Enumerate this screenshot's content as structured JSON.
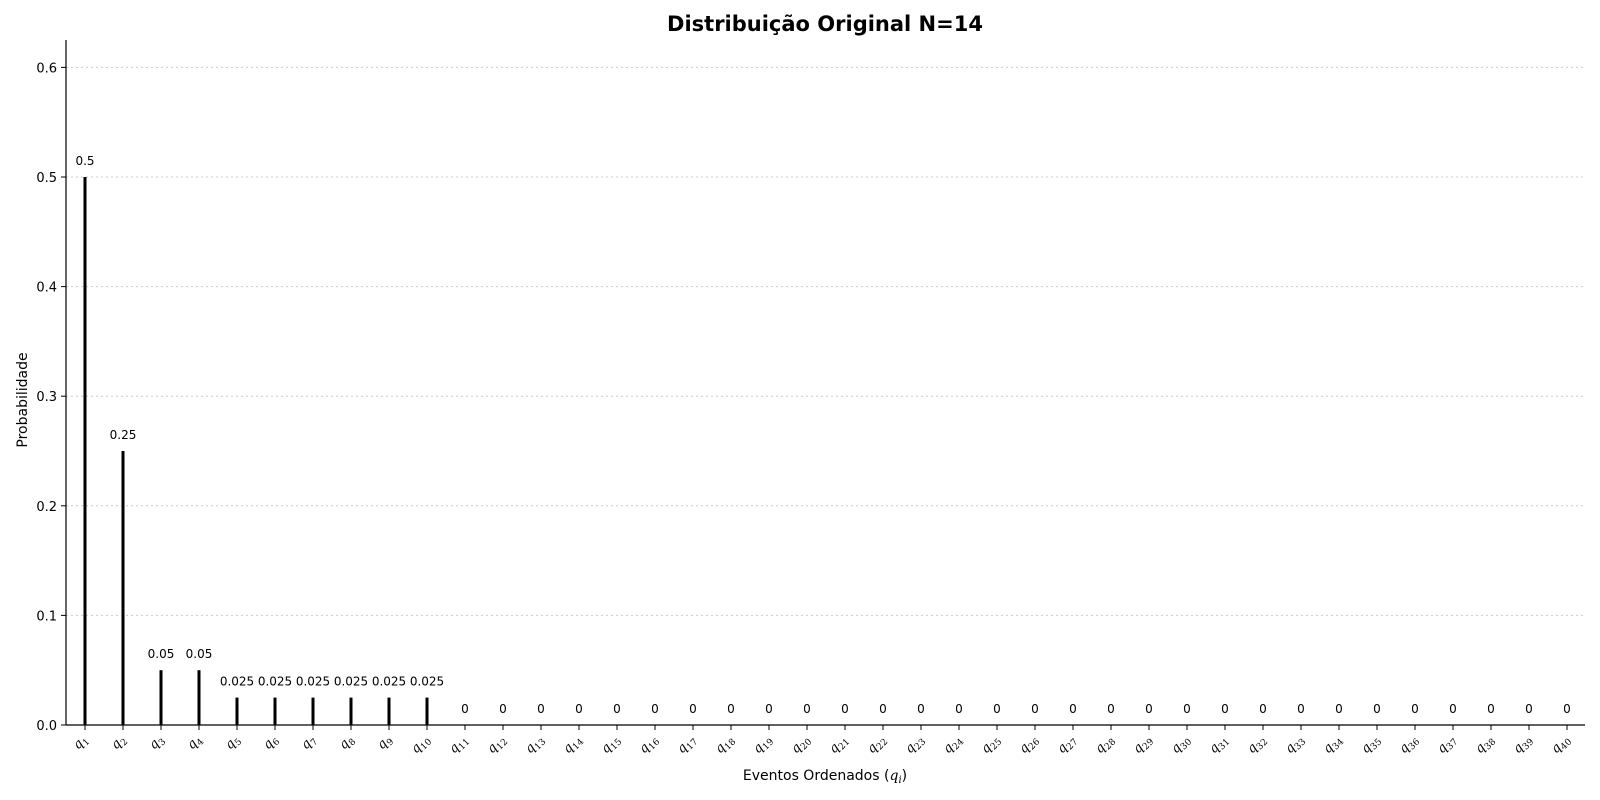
{
  "chart_data": {
    "type": "bar",
    "title": "Distribuição Original N=14",
    "xlabel": "Eventos Ordenados",
    "xlabel_math": "(q_i)",
    "ylabel": "Probabilidade",
    "ylim": [
      0,
      0.625
    ],
    "yticks": [
      "0.0",
      "0.1",
      "0.2",
      "0.3",
      "0.4",
      "0.5",
      "0.6"
    ],
    "ytick_values": [
      0,
      0.1,
      0.2,
      0.3,
      0.4,
      0.5,
      0.6
    ],
    "grid": "y-dotted",
    "bar_color": "#000000",
    "grid_color": "#cccccc",
    "categories": [
      "q_1",
      "q_2",
      "q_3",
      "q_4",
      "q_5",
      "q_6",
      "q_7",
      "q_8",
      "q_9",
      "q_10",
      "q_11",
      "q_12",
      "q_13",
      "q_14",
      "q_15",
      "q_16",
      "q_17",
      "q_18",
      "q_19",
      "q_20",
      "q_21",
      "q_22",
      "q_23",
      "q_24",
      "q_25",
      "q_26",
      "q_27",
      "q_28",
      "q_29",
      "q_30",
      "q_31",
      "q_32",
      "q_33",
      "q_34",
      "q_35",
      "q_36",
      "q_37",
      "q_38",
      "q_39",
      "q_40"
    ],
    "values": [
      0.5,
      0.25,
      0.05,
      0.05,
      0.025,
      0.025,
      0.025,
      0.025,
      0.025,
      0.025,
      0,
      0,
      0,
      0,
      0,
      0,
      0,
      0,
      0,
      0,
      0,
      0,
      0,
      0,
      0,
      0,
      0,
      0,
      0,
      0,
      0,
      0,
      0,
      0,
      0,
      0,
      0,
      0,
      0,
      0
    ],
    "data_labels": [
      "0.5",
      "0.25",
      "0.05",
      "0.05",
      "0.025",
      "0.025",
      "0.025",
      "0.025",
      "0.025",
      "0.025",
      "0",
      "0",
      "0",
      "0",
      "0",
      "0",
      "0",
      "0",
      "0",
      "0",
      "0",
      "0",
      "0",
      "0",
      "0",
      "0",
      "0",
      "0",
      "0",
      "0",
      "0",
      "0",
      "0",
      "0",
      "0",
      "0",
      "0",
      "0",
      "0",
      "0"
    ]
  }
}
